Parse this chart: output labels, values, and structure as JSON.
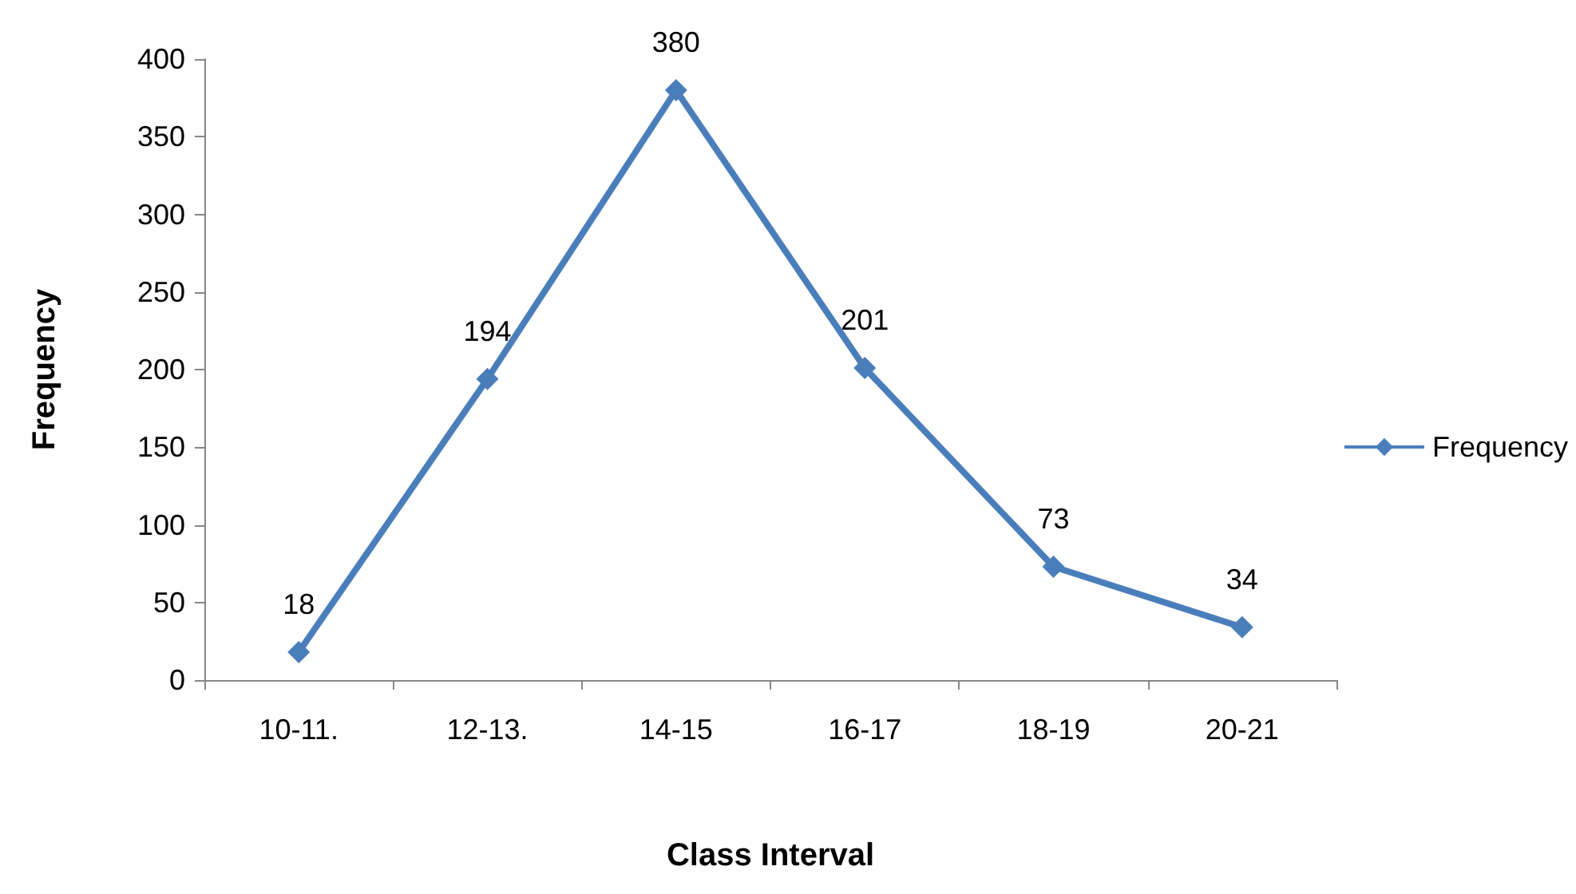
{
  "chart_data": {
    "type": "line",
    "xlabel": "Class Interval",
    "ylabel": "Frequency",
    "categories": [
      "10-11.",
      "12-13.",
      "14-15",
      "16-17",
      "18-19",
      "20-21"
    ],
    "series": [
      {
        "name": "Frequency",
        "color": "#4a7ebb",
        "values": [
          18,
          194,
          380,
          201,
          73,
          34
        ]
      }
    ],
    "ylim": [
      0,
      400
    ],
    "yticks": [
      0,
      50,
      100,
      150,
      200,
      250,
      300,
      350,
      400
    ],
    "data_labels": true,
    "legend": "right",
    "marker": "diamond",
    "grid": false
  }
}
